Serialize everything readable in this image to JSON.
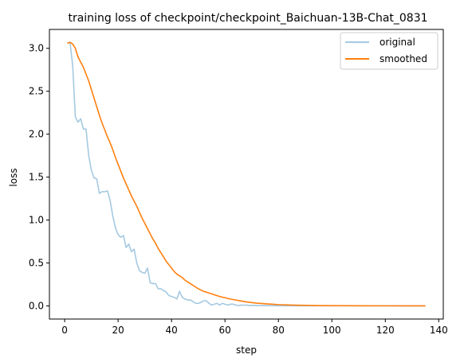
{
  "chart_data": {
    "type": "line",
    "title": "training loss of checkpoint/checkpoint_Baichuan-13B-Chat_0831",
    "xlabel": "step",
    "ylabel": "loss",
    "xlim": [
      -5.7,
      141.7
    ],
    "ylim": [
      -0.153,
      3.22
    ],
    "xticks": [
      0,
      20,
      40,
      60,
      80,
      100,
      120,
      140
    ],
    "yticks": [
      0.0,
      0.5,
      1.0,
      1.5,
      2.0,
      2.5,
      3.0
    ],
    "xtick_labels": [
      "0",
      "20",
      "40",
      "60",
      "80",
      "100",
      "120",
      "140"
    ],
    "ytick_labels": [
      "0.0",
      "0.5",
      "1.0",
      "1.5",
      "2.0",
      "2.5",
      "3.0"
    ],
    "legend_position": "top-right",
    "grid": false,
    "series": [
      {
        "name": "original",
        "color": "#1f77b4",
        "opacity": 0.4,
        "points": [
          [
            1,
            3.06
          ],
          [
            2,
            3.07
          ],
          [
            3,
            2.8
          ],
          [
            4,
            2.2
          ],
          [
            5,
            2.14
          ],
          [
            6,
            2.18
          ],
          [
            7,
            2.06
          ],
          [
            8,
            2.06
          ],
          [
            9,
            1.75
          ],
          [
            10,
            1.58
          ],
          [
            11,
            1.49
          ],
          [
            12,
            1.48
          ],
          [
            13,
            1.31
          ],
          [
            14,
            1.33
          ],
          [
            15,
            1.33
          ],
          [
            16,
            1.34
          ],
          [
            17,
            1.23
          ],
          [
            18,
            1.05
          ],
          [
            19,
            0.91
          ],
          [
            20,
            0.83
          ],
          [
            21,
            0.8
          ],
          [
            22,
            0.82
          ],
          [
            23,
            0.68
          ],
          [
            24,
            0.72
          ],
          [
            25,
            0.63
          ],
          [
            26,
            0.66
          ],
          [
            27,
            0.5
          ],
          [
            28,
            0.41
          ],
          [
            29,
            0.39
          ],
          [
            30,
            0.38
          ],
          [
            31,
            0.44
          ],
          [
            32,
            0.27
          ],
          [
            33,
            0.26
          ],
          [
            34,
            0.26
          ],
          [
            35,
            0.2
          ],
          [
            36,
            0.2
          ],
          [
            37,
            0.18
          ],
          [
            38,
            0.16
          ],
          [
            39,
            0.12
          ],
          [
            40,
            0.11
          ],
          [
            41,
            0.1
          ],
          [
            42,
            0.08
          ],
          [
            43,
            0.17
          ],
          [
            44,
            0.1
          ],
          [
            45,
            0.08
          ],
          [
            46,
            0.07
          ],
          [
            47,
            0.07
          ],
          [
            48,
            0.05
          ],
          [
            49,
            0.03
          ],
          [
            50,
            0.03
          ],
          [
            51,
            0.04
          ],
          [
            52,
            0.06
          ],
          [
            53,
            0.06
          ],
          [
            54,
            0.03
          ],
          [
            55,
            0.01
          ],
          [
            56,
            0.02
          ],
          [
            57,
            0.03
          ],
          [
            58,
            0.01
          ],
          [
            59,
            0.03
          ],
          [
            60,
            0.02
          ],
          [
            61,
            0.01
          ],
          [
            62,
            0.02
          ],
          [
            63,
            0.02
          ],
          [
            64,
            0.01
          ],
          [
            65,
            0.005
          ],
          [
            66,
            0.01
          ],
          [
            67,
            0.008
          ],
          [
            68,
            0.01
          ],
          [
            69,
            0.005
          ],
          [
            70,
            0.006
          ],
          [
            72,
            0.004
          ],
          [
            75,
            0.003
          ],
          [
            80,
            0.002
          ],
          [
            85,
            0.002
          ],
          [
            90,
            0.001
          ],
          [
            100,
            0.001
          ],
          [
            110,
            0.001
          ],
          [
            120,
            0.0005
          ],
          [
            135,
            0.0005
          ]
        ]
      },
      {
        "name": "smoothed",
        "color": "#ff7f0e",
        "opacity": 1,
        "points": [
          [
            1,
            3.06
          ],
          [
            2,
            3.07
          ],
          [
            3,
            3.05
          ],
          [
            4,
            3.0
          ],
          [
            5,
            2.9
          ],
          [
            6,
            2.84
          ],
          [
            7,
            2.78
          ],
          [
            8,
            2.7
          ],
          [
            9,
            2.62
          ],
          [
            10,
            2.52
          ],
          [
            11,
            2.42
          ],
          [
            12,
            2.32
          ],
          [
            13,
            2.22
          ],
          [
            14,
            2.13
          ],
          [
            15,
            2.05
          ],
          [
            16,
            1.97
          ],
          [
            17,
            1.9
          ],
          [
            18,
            1.82
          ],
          [
            19,
            1.73
          ],
          [
            20,
            1.65
          ],
          [
            21,
            1.57
          ],
          [
            22,
            1.49
          ],
          [
            23,
            1.42
          ],
          [
            24,
            1.35
          ],
          [
            25,
            1.28
          ],
          [
            26,
            1.22
          ],
          [
            27,
            1.16
          ],
          [
            28,
            1.09
          ],
          [
            29,
            1.02
          ],
          [
            30,
            0.96
          ],
          [
            31,
            0.9
          ],
          [
            32,
            0.84
          ],
          [
            33,
            0.78
          ],
          [
            34,
            0.73
          ],
          [
            35,
            0.67
          ],
          [
            36,
            0.62
          ],
          [
            37,
            0.57
          ],
          [
            38,
            0.52
          ],
          [
            39,
            0.48
          ],
          [
            40,
            0.44
          ],
          [
            41,
            0.4
          ],
          [
            42,
            0.37
          ],
          [
            43,
            0.35
          ],
          [
            44,
            0.33
          ],
          [
            45,
            0.3
          ],
          [
            46,
            0.28
          ],
          [
            47,
            0.26
          ],
          [
            48,
            0.24
          ],
          [
            49,
            0.22
          ],
          [
            50,
            0.2
          ],
          [
            52,
            0.17
          ],
          [
            54,
            0.15
          ],
          [
            56,
            0.13
          ],
          [
            58,
            0.11
          ],
          [
            60,
            0.095
          ],
          [
            62,
            0.08
          ],
          [
            64,
            0.068
          ],
          [
            66,
            0.057
          ],
          [
            68,
            0.047
          ],
          [
            70,
            0.039
          ],
          [
            72,
            0.032
          ],
          [
            75,
            0.025
          ],
          [
            78,
            0.019
          ],
          [
            80,
            0.015
          ],
          [
            85,
            0.01
          ],
          [
            90,
            0.006
          ],
          [
            95,
            0.004
          ],
          [
            100,
            0.003
          ],
          [
            110,
            0.002
          ],
          [
            120,
            0.001
          ],
          [
            135,
            0.0008
          ]
        ]
      }
    ]
  }
}
